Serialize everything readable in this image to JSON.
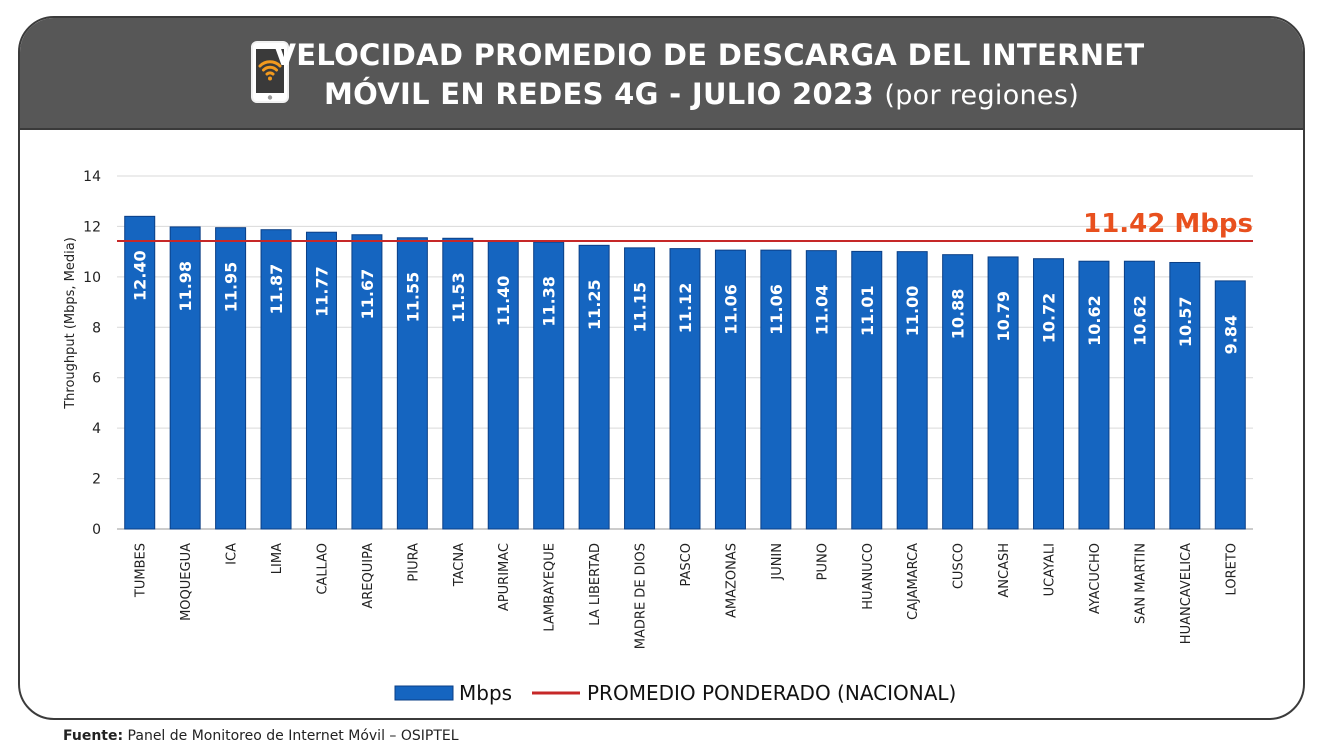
{
  "header": {
    "title_line1": "VELOCIDAD PROMEDIO DE DESCARGA DEL INTERNET",
    "title_line2_main": "MÓVIL EN REDES 4G - JULIO 2023",
    "title_line2_sub": "(por regiones)",
    "icon": "wifi-phone-icon"
  },
  "colors": {
    "bar": "#1565C0",
    "bar_edge": "#0B3F86",
    "average_line": "#C62828",
    "average_label": "#E8501E",
    "header_bg": "#575757"
  },
  "chart_data": {
    "type": "bar",
    "ylabel": "Throughput (Mbps, Media)",
    "ylim": [
      0,
      14
    ],
    "yticks": [
      0,
      2,
      4,
      6,
      8,
      10,
      12,
      14
    ],
    "grid": true,
    "categories": [
      "TUMBES",
      "MOQUEGUA",
      "ICA",
      "LIMA",
      "CALLAO",
      "AREQUIPA",
      "PIURA",
      "TACNA",
      "APURIMAC",
      "LAMBAYEQUE",
      "LA LIBERTAD",
      "MADRE DE DIOS",
      "PASCO",
      "AMAZONAS",
      "JUNIN",
      "PUNO",
      "HUANUCO",
      "CAJAMARCA",
      "CUSCO",
      "ANCASH",
      "UCAYALI",
      "AYACUCHO",
      "SAN MARTIN",
      "HUANCAVELICA",
      "LORETO"
    ],
    "series": [
      {
        "name": "Mbps",
        "values": [
          12.4,
          11.98,
          11.95,
          11.87,
          11.77,
          11.67,
          11.55,
          11.53,
          11.4,
          11.38,
          11.25,
          11.15,
          11.12,
          11.06,
          11.06,
          11.04,
          11.01,
          11.0,
          10.88,
          10.79,
          10.72,
          10.62,
          10.62,
          10.57,
          9.84
        ],
        "labels": [
          "12.40",
          "11.98",
          "11.95",
          "11.87",
          "11.77",
          "11.67",
          "11.55",
          "11.53",
          "11.40",
          "11.38",
          "11.25",
          "11.15",
          "11.12",
          "11.06",
          "11.06",
          "11.04",
          "11.01",
          "11.00",
          "10.88",
          "10.79",
          "10.72",
          "10.62",
          "10.62",
          "10.57",
          "9.84"
        ]
      }
    ],
    "reference_line": {
      "name": "PROMEDIO PONDERADO (NACIONAL)",
      "value": 11.42,
      "label": "11.42 Mbps"
    },
    "legend": {
      "placement": "bottom",
      "entries": [
        "Mbps",
        "PROMEDIO PONDERADO (NACIONAL)"
      ]
    }
  },
  "source": {
    "label": "Fuente:",
    "text": "Panel de Monitoreo de Internet Móvil – OSIPTEL"
  }
}
